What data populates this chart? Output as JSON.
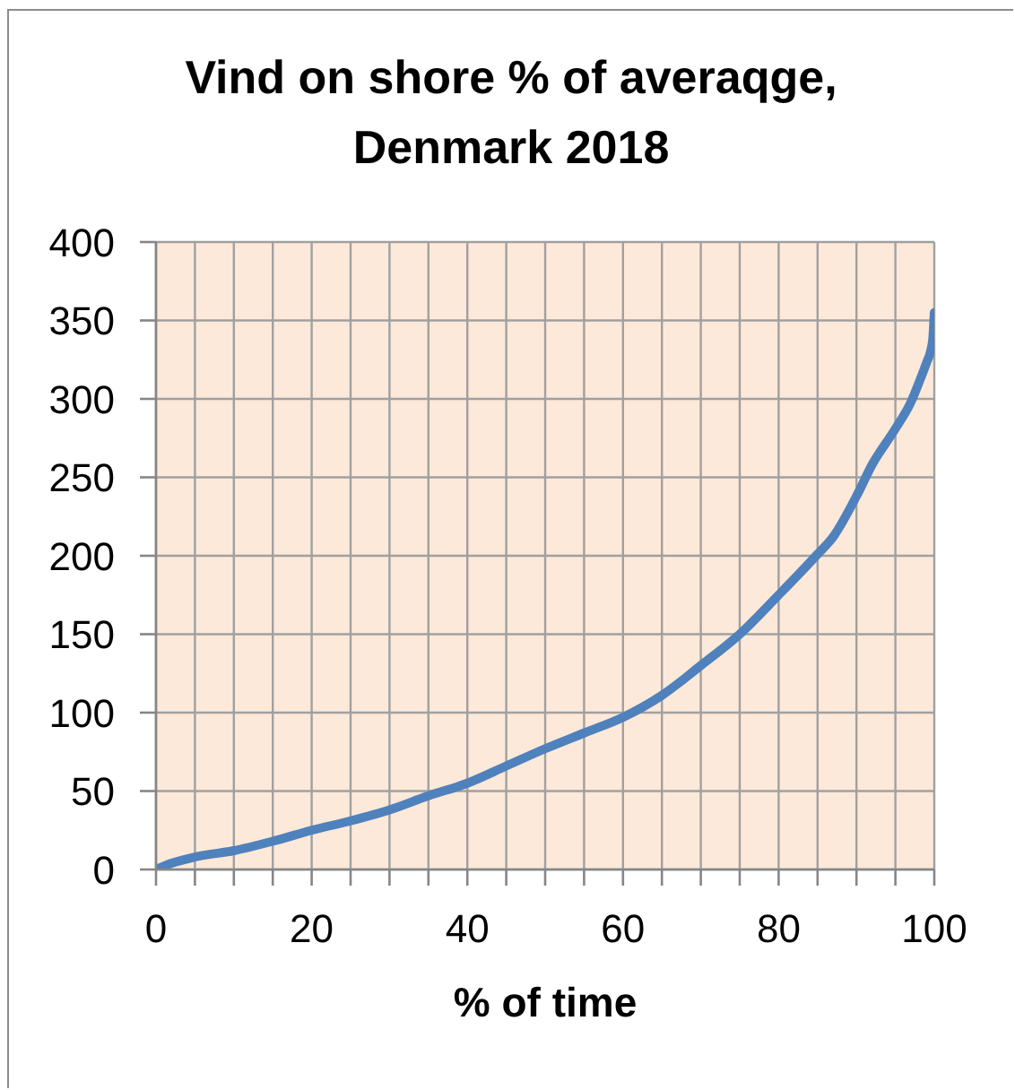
{
  "chart_data": {
    "type": "line",
    "title": "Vind on shore % of averaqge, Denmark 2018",
    "xlabel": "% of time",
    "x": [
      0,
      2,
      5,
      10,
      15,
      20,
      25,
      30,
      35,
      40,
      45,
      50,
      55,
      60,
      65,
      70,
      75,
      80,
      85,
      87,
      90,
      92,
      95,
      97,
      98,
      99,
      99.5,
      99.8,
      100
    ],
    "series": [
      {
        "color": "#4f81bd",
        "values": [
          0,
          4,
          8,
          12,
          18,
          25,
          31,
          38,
          47,
          55,
          66,
          77,
          87,
          97,
          111,
          130,
          150,
          175,
          201,
          212,
          238,
          258,
          281,
          298,
          310,
          323,
          330,
          338,
          355
        ]
      }
    ],
    "xlim": [
      0,
      100
    ],
    "ylim": [
      0,
      400
    ],
    "xticks": [
      0,
      {
        "value": 5,
        "label": null
      },
      {
        "value": 10,
        "label": null
      },
      {
        "value": 15,
        "label": null
      },
      20,
      {
        "value": 25,
        "label": null
      },
      {
        "value": 30,
        "label": null
      },
      {
        "value": 35,
        "label": null
      },
      40,
      {
        "value": 45,
        "label": null
      },
      {
        "value": 50,
        "label": null
      },
      {
        "value": 55,
        "label": null
      },
      60,
      {
        "value": 65,
        "label": null
      },
      {
        "value": 70,
        "label": null
      },
      {
        "value": 75,
        "label": null
      },
      80,
      {
        "value": 85,
        "label": null
      },
      {
        "value": 90,
        "label": null
      },
      {
        "value": 95,
        "label": null
      },
      100
    ],
    "yticks": [
      0,
      50,
      100,
      150,
      200,
      250,
      300,
      350,
      400
    ],
    "grid": true
  }
}
